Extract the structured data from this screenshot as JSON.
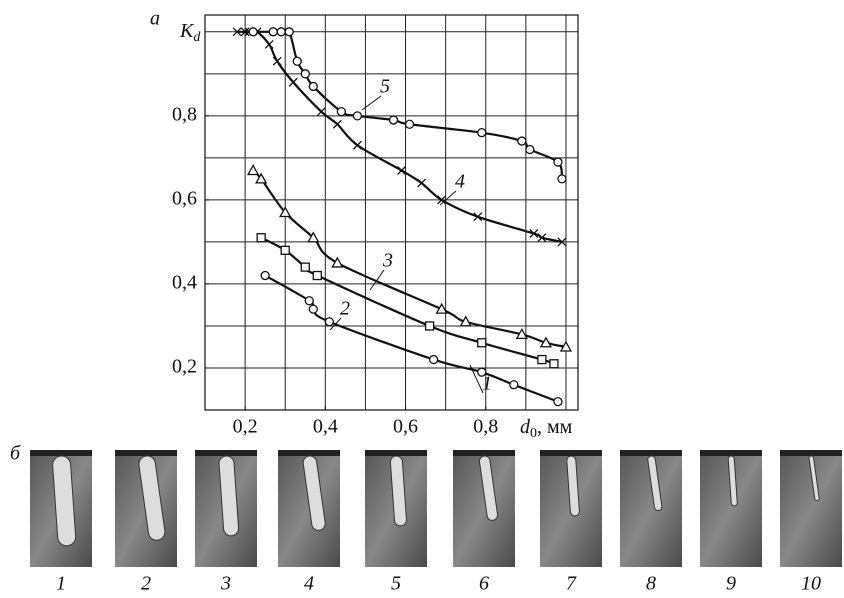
{
  "chart_data": {
    "type": "line",
    "panel_label": "а",
    "ylabel": [
      "K",
      "d"
    ],
    "xlabel": [
      "d",
      "0",
      ", мм"
    ],
    "xlim": [
      0.1,
      1.03
    ],
    "ylim": [
      0.1,
      1.04
    ],
    "xticks": [
      {
        "value": 0.2,
        "label": "0,2"
      },
      {
        "value": 0.4,
        "label": "0,4"
      },
      {
        "value": 0.6,
        "label": "0,6"
      },
      {
        "value": 0.8,
        "label": "0,8"
      }
    ],
    "yticks": [
      {
        "value": 0.2,
        "label": "0,2"
      },
      {
        "value": 0.4,
        "label": "0,4"
      },
      {
        "value": 0.6,
        "label": "0,6"
      },
      {
        "value": 0.8,
        "label": "0,8"
      }
    ],
    "xgrid": [
      0.2,
      0.3,
      0.4,
      0.5,
      0.6,
      0.7,
      0.8,
      0.9,
      1.0
    ],
    "ygrid": [
      0.2,
      0.3,
      0.4,
      0.5,
      0.6,
      0.7,
      0.8,
      0.9,
      1.0
    ],
    "grid": true,
    "series": [
      {
        "name": "1",
        "color": "#111",
        "marker": "circle",
        "x": [
          0.25,
          0.36,
          0.37,
          0.41,
          0.67,
          0.79,
          0.87,
          0.98
        ],
        "values": [
          0.42,
          0.36,
          0.34,
          0.31,
          0.22,
          0.19,
          0.16,
          0.12
        ]
      },
      {
        "name": "2",
        "color": "#111",
        "marker": "square",
        "x": [
          0.24,
          0.3,
          0.35,
          0.38,
          0.66,
          0.79,
          0.94,
          0.97
        ],
        "values": [
          0.51,
          0.48,
          0.44,
          0.42,
          0.3,
          0.26,
          0.22,
          0.21
        ]
      },
      {
        "name": "3",
        "color": "#111",
        "marker": "triangle",
        "x": [
          0.22,
          0.24,
          0.3,
          0.37,
          0.43,
          0.69,
          0.75,
          0.89,
          0.95,
          1.0
        ],
        "values": [
          0.67,
          0.65,
          0.57,
          0.51,
          0.45,
          0.34,
          0.31,
          0.28,
          0.26,
          0.25
        ]
      },
      {
        "name": "4",
        "color": "#111",
        "marker": "x",
        "x": [
          0.18,
          0.2,
          0.21,
          0.23,
          0.26,
          0.28,
          0.32,
          0.39,
          0.43,
          0.48,
          0.59,
          0.64,
          0.69,
          0.78,
          0.92,
          0.94,
          0.99
        ],
        "values": [
          1.0,
          1.0,
          1.0,
          1.0,
          0.97,
          0.93,
          0.88,
          0.81,
          0.78,
          0.73,
          0.67,
          0.64,
          0.6,
          0.56,
          0.52,
          0.51,
          0.5
        ]
      },
      {
        "name": "5",
        "color": "#111",
        "marker": "circle",
        "x": [
          0.22,
          0.27,
          0.29,
          0.31,
          0.33,
          0.35,
          0.37,
          0.44,
          0.48,
          0.57,
          0.61,
          0.79,
          0.89,
          0.91,
          0.98,
          0.99
        ],
        "values": [
          1.0,
          1.0,
          1.0,
          1.0,
          0.93,
          0.9,
          0.87,
          0.81,
          0.8,
          0.79,
          0.78,
          0.76,
          0.74,
          0.72,
          0.69,
          0.65
        ]
      }
    ]
  },
  "photos": {
    "panel_label": "б",
    "items": [
      "1",
      "2",
      "3",
      "4",
      "5",
      "6",
      "7",
      "8",
      "9",
      "10"
    ]
  }
}
